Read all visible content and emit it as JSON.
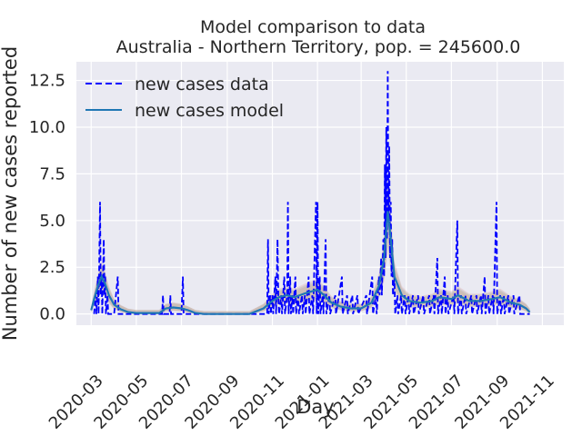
{
  "chart_data": {
    "type": "line",
    "title_line1": "Model comparison to data",
    "title_line2": "Australia - Northern Territory, pop. = 245600.0",
    "xlabel": "Day",
    "ylabel": "Number of new cases reported",
    "x_range": [
      "2020-02-10",
      "2021-11-30"
    ],
    "ylim": [
      -0.6,
      13.5
    ],
    "y_ticks": [
      0.0,
      2.5,
      5.0,
      7.5,
      10.0,
      12.5
    ],
    "y_tick_labels": [
      "0.0",
      "2.5",
      "5.0",
      "7.5",
      "10.0",
      "12.5"
    ],
    "x_ticks": [
      "2020-03-01",
      "2020-05-01",
      "2020-07-01",
      "2020-09-01",
      "2020-11-01",
      "2021-01-01",
      "2021-03-01",
      "2021-05-01",
      "2021-07-01",
      "2021-09-01",
      "2021-11-01"
    ],
    "x_tick_labels": [
      "2020-03",
      "2020-05",
      "2020-07",
      "2020-09",
      "2020-11",
      "2021-01",
      "2021-03",
      "2021-05",
      "2021-07",
      "2021-09",
      "2021-11"
    ],
    "grid": true,
    "legend_position": "top-left",
    "background": "#eaeaf2",
    "series": [
      {
        "name": "new cases data",
        "style": "dashed",
        "color": "#0000ff",
        "points": [
          [
            "2020-03-05",
            0
          ],
          [
            "2020-03-07",
            1
          ],
          [
            "2020-03-08",
            0
          ],
          [
            "2020-03-10",
            2
          ],
          [
            "2020-03-11",
            0
          ],
          [
            "2020-03-13",
            6
          ],
          [
            "2020-03-14",
            1
          ],
          [
            "2020-03-15",
            2
          ],
          [
            "2020-03-16",
            0
          ],
          [
            "2020-03-18",
            4
          ],
          [
            "2020-03-19",
            1
          ],
          [
            "2020-03-20",
            2
          ],
          [
            "2020-03-21",
            0
          ],
          [
            "2020-03-23",
            1
          ],
          [
            "2020-03-24",
            0
          ],
          [
            "2020-04-01",
            0
          ],
          [
            "2020-04-06",
            2
          ],
          [
            "2020-04-07",
            0
          ],
          [
            "2020-05-01",
            0
          ],
          [
            "2020-06-05",
            0
          ],
          [
            "2020-06-06",
            1
          ],
          [
            "2020-06-07",
            0
          ],
          [
            "2020-06-15",
            0
          ],
          [
            "2020-06-16",
            1
          ],
          [
            "2020-06-17",
            0
          ],
          [
            "2020-07-01",
            0
          ],
          [
            "2020-07-03",
            2
          ],
          [
            "2020-07-04",
            0
          ],
          [
            "2020-10-25",
            0
          ],
          [
            "2020-10-26",
            4
          ],
          [
            "2020-10-27",
            0
          ],
          [
            "2020-10-29",
            1
          ],
          [
            "2020-10-30",
            0
          ],
          [
            "2020-11-01",
            1
          ],
          [
            "2020-11-02",
            0
          ],
          [
            "2020-11-05",
            2
          ],
          [
            "2020-11-06",
            0
          ],
          [
            "2020-11-08",
            4
          ],
          [
            "2020-11-09",
            1
          ],
          [
            "2020-11-10",
            0
          ],
          [
            "2020-11-13",
            1
          ],
          [
            "2020-11-14",
            0
          ],
          [
            "2020-11-17",
            2
          ],
          [
            "2020-11-18",
            0
          ],
          [
            "2020-11-21",
            1
          ],
          [
            "2020-11-22",
            6
          ],
          [
            "2020-11-23",
            0
          ],
          [
            "2020-11-25",
            2
          ],
          [
            "2020-11-26",
            0
          ],
          [
            "2020-11-28",
            1
          ],
          [
            "2020-11-29",
            0
          ],
          [
            "2020-12-02",
            2
          ],
          [
            "2020-12-03",
            0
          ],
          [
            "2020-12-06",
            1
          ],
          [
            "2020-12-07",
            0
          ],
          [
            "2020-12-11",
            1
          ],
          [
            "2020-12-12",
            0
          ],
          [
            "2020-12-15",
            1
          ],
          [
            "2020-12-16",
            0
          ],
          [
            "2020-12-20",
            2
          ],
          [
            "2020-12-21",
            0
          ],
          [
            "2020-12-25",
            1
          ],
          [
            "2020-12-26",
            0
          ],
          [
            "2020-12-30",
            6
          ],
          [
            "2020-12-31",
            0
          ],
          [
            "2021-01-01",
            6
          ],
          [
            "2021-01-02",
            0
          ],
          [
            "2021-01-04",
            2
          ],
          [
            "2021-01-05",
            0
          ],
          [
            "2021-01-08",
            1
          ],
          [
            "2021-01-09",
            0
          ],
          [
            "2021-01-12",
            4
          ],
          [
            "2021-01-13",
            0
          ],
          [
            "2021-01-17",
            1
          ],
          [
            "2021-01-18",
            0
          ],
          [
            "2021-01-25",
            1
          ],
          [
            "2021-01-26",
            0
          ],
          [
            "2021-02-03",
            2
          ],
          [
            "2021-02-04",
            0
          ],
          [
            "2021-02-10",
            1
          ],
          [
            "2021-02-11",
            0
          ],
          [
            "2021-02-17",
            1
          ],
          [
            "2021-02-18",
            0
          ],
          [
            "2021-02-24",
            1
          ],
          [
            "2021-02-25",
            0
          ],
          [
            "2021-03-08",
            1
          ],
          [
            "2021-03-09",
            0
          ],
          [
            "2021-03-16",
            2
          ],
          [
            "2021-03-17",
            0
          ],
          [
            "2021-03-21",
            1
          ],
          [
            "2021-03-22",
            0
          ],
          [
            "2021-03-25",
            2
          ],
          [
            "2021-03-26",
            1
          ],
          [
            "2021-03-28",
            3
          ],
          [
            "2021-03-29",
            1
          ],
          [
            "2021-03-31",
            4
          ],
          [
            "2021-04-01",
            2
          ],
          [
            "2021-04-02",
            8
          ],
          [
            "2021-04-03",
            3
          ],
          [
            "2021-04-04",
            10
          ],
          [
            "2021-04-05",
            4
          ],
          [
            "2021-04-06",
            13
          ],
          [
            "2021-04-07",
            5
          ],
          [
            "2021-04-08",
            9
          ],
          [
            "2021-04-09",
            3
          ],
          [
            "2021-04-10",
            6
          ],
          [
            "2021-04-11",
            2
          ],
          [
            "2021-04-12",
            4
          ],
          [
            "2021-04-13",
            1
          ],
          [
            "2021-04-15",
            2
          ],
          [
            "2021-04-16",
            0
          ],
          [
            "2021-04-19",
            1
          ],
          [
            "2021-04-20",
            0
          ],
          [
            "2021-04-24",
            1
          ],
          [
            "2021-04-25",
            0
          ],
          [
            "2021-04-29",
            1
          ],
          [
            "2021-04-30",
            0
          ],
          [
            "2021-05-04",
            1
          ],
          [
            "2021-05-05",
            0
          ],
          [
            "2021-05-10",
            1
          ],
          [
            "2021-05-11",
            0
          ],
          [
            "2021-05-17",
            1
          ],
          [
            "2021-05-18",
            0
          ],
          [
            "2021-05-24",
            1
          ],
          [
            "2021-05-25",
            0
          ],
          [
            "2021-06-01",
            1
          ],
          [
            "2021-06-02",
            0
          ],
          [
            "2021-06-07",
            1
          ],
          [
            "2021-06-08",
            0
          ],
          [
            "2021-06-12",
            3
          ],
          [
            "2021-06-13",
            0
          ],
          [
            "2021-06-17",
            1
          ],
          [
            "2021-06-18",
            0
          ],
          [
            "2021-06-22",
            2
          ],
          [
            "2021-06-23",
            0
          ],
          [
            "2021-06-26",
            1
          ],
          [
            "2021-06-27",
            0
          ],
          [
            "2021-07-04",
            1
          ],
          [
            "2021-07-05",
            0
          ],
          [
            "2021-07-09",
            5
          ],
          [
            "2021-07-10",
            0
          ],
          [
            "2021-07-14",
            1
          ],
          [
            "2021-07-15",
            0
          ],
          [
            "2021-07-20",
            1
          ],
          [
            "2021-07-21",
            0
          ],
          [
            "2021-07-28",
            1
          ],
          [
            "2021-07-29",
            0
          ],
          [
            "2021-08-04",
            1
          ],
          [
            "2021-08-05",
            0
          ],
          [
            "2021-08-10",
            1
          ],
          [
            "2021-08-11",
            0
          ],
          [
            "2021-08-15",
            2
          ],
          [
            "2021-08-16",
            0
          ],
          [
            "2021-08-20",
            1
          ],
          [
            "2021-08-21",
            0
          ],
          [
            "2021-08-26",
            1
          ],
          [
            "2021-08-27",
            0
          ],
          [
            "2021-08-31",
            6
          ],
          [
            "2021-09-01",
            0
          ],
          [
            "2021-09-05",
            1
          ],
          [
            "2021-09-06",
            0
          ],
          [
            "2021-09-10",
            1
          ],
          [
            "2021-09-11",
            0
          ],
          [
            "2021-09-16",
            1
          ],
          [
            "2021-09-17",
            0
          ],
          [
            "2021-09-23",
            1
          ],
          [
            "2021-09-24",
            0
          ],
          [
            "2021-10-01",
            1
          ],
          [
            "2021-10-02",
            0
          ],
          [
            "2021-10-10",
            0
          ],
          [
            "2021-10-15",
            0
          ]
        ]
      },
      {
        "name": "new cases model",
        "style": "solid",
        "color": "#1f77b4",
        "points": [
          [
            "2020-03-01",
            0.2
          ],
          [
            "2020-03-05",
            0.8
          ],
          [
            "2020-03-10",
            1.5
          ],
          [
            "2020-03-15",
            2.0
          ],
          [
            "2020-03-20",
            1.6
          ],
          [
            "2020-03-25",
            1.0
          ],
          [
            "2020-04-01",
            0.5
          ],
          [
            "2020-04-10",
            0.25
          ],
          [
            "2020-04-20",
            0.1
          ],
          [
            "2020-05-01",
            0.05
          ],
          [
            "2020-06-01",
            0.05
          ],
          [
            "2020-06-10",
            0.3
          ],
          [
            "2020-06-20",
            0.35
          ],
          [
            "2020-07-01",
            0.3
          ],
          [
            "2020-07-10",
            0.2
          ],
          [
            "2020-07-20",
            0.05
          ],
          [
            "2020-08-01",
            0.0
          ],
          [
            "2020-09-01",
            0.0
          ],
          [
            "2020-10-01",
            0.0
          ],
          [
            "2020-10-20",
            0.3
          ],
          [
            "2020-11-01",
            0.7
          ],
          [
            "2020-11-10",
            0.9
          ],
          [
            "2020-11-20",
            1.0
          ],
          [
            "2020-12-01",
            0.9
          ],
          [
            "2020-12-15",
            1.1
          ],
          [
            "2021-01-01",
            1.3
          ],
          [
            "2021-01-10",
            1.0
          ],
          [
            "2021-01-20",
            0.6
          ],
          [
            "2021-02-01",
            0.4
          ],
          [
            "2021-02-15",
            0.3
          ],
          [
            "2021-03-01",
            0.3
          ],
          [
            "2021-03-15",
            0.6
          ],
          [
            "2021-03-25",
            1.5
          ],
          [
            "2021-04-01",
            3.0
          ],
          [
            "2021-04-06",
            5.5
          ],
          [
            "2021-04-10",
            4.0
          ],
          [
            "2021-04-15",
            2.0
          ],
          [
            "2021-04-25",
            1.0
          ],
          [
            "2021-05-05",
            0.7
          ],
          [
            "2021-05-20",
            0.6
          ],
          [
            "2021-06-05",
            0.7
          ],
          [
            "2021-06-15",
            0.9
          ],
          [
            "2021-07-01",
            0.8
          ],
          [
            "2021-07-10",
            1.0
          ],
          [
            "2021-07-25",
            0.7
          ],
          [
            "2021-08-10",
            0.7
          ],
          [
            "2021-08-25",
            0.8
          ],
          [
            "2021-09-05",
            0.9
          ],
          [
            "2021-09-20",
            0.6
          ],
          [
            "2021-10-01",
            0.5
          ],
          [
            "2021-10-10",
            0.3
          ],
          [
            "2021-10-15",
            0.1
          ]
        ]
      }
    ]
  }
}
